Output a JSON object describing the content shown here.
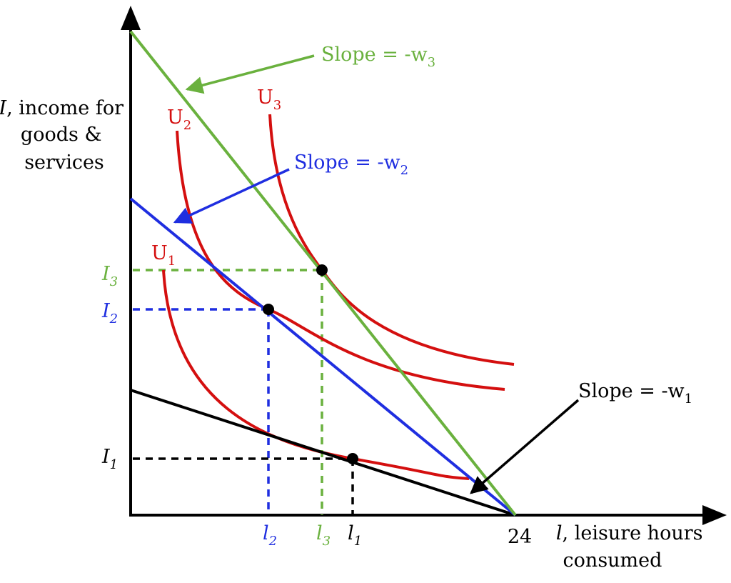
{
  "axes": {
    "y_title_lines": [
      "I, income for",
      "goods &",
      "services"
    ],
    "x_title_lines": [
      "l, leisure hours",
      "consumed"
    ],
    "x_intercept_label": "24"
  },
  "colors": {
    "budget_w1": "#000000",
    "budget_w2": "#1f2ee0",
    "budget_w3": "#6ab13e",
    "indifference": "#d40f0f",
    "axis": "#000000"
  },
  "budget_lines": [
    {
      "id": "w1",
      "slope_label": "Slope = -w",
      "subscript": "1",
      "color_key": "budget_w1"
    },
    {
      "id": "w2",
      "slope_label": "Slope = -w",
      "subscript": "2",
      "color_key": "budget_w2"
    },
    {
      "id": "w3",
      "slope_label": "Slope = -w",
      "subscript": "3",
      "color_key": "budget_w3"
    }
  ],
  "indifference_curves": [
    {
      "id": "U1",
      "label": "U",
      "subscript": "1"
    },
    {
      "id": "U2",
      "label": "U",
      "subscript": "2"
    },
    {
      "id": "U3",
      "label": "U",
      "subscript": "3"
    }
  ],
  "optimum_points": [
    {
      "id": "1",
      "income_label": "I",
      "leisure_label": "l",
      "subscript": "1"
    },
    {
      "id": "2",
      "income_label": "I",
      "leisure_label": "l",
      "subscript": "2"
    },
    {
      "id": "3",
      "income_label": "I",
      "leisure_label": "l",
      "subscript": "3"
    }
  ]
}
